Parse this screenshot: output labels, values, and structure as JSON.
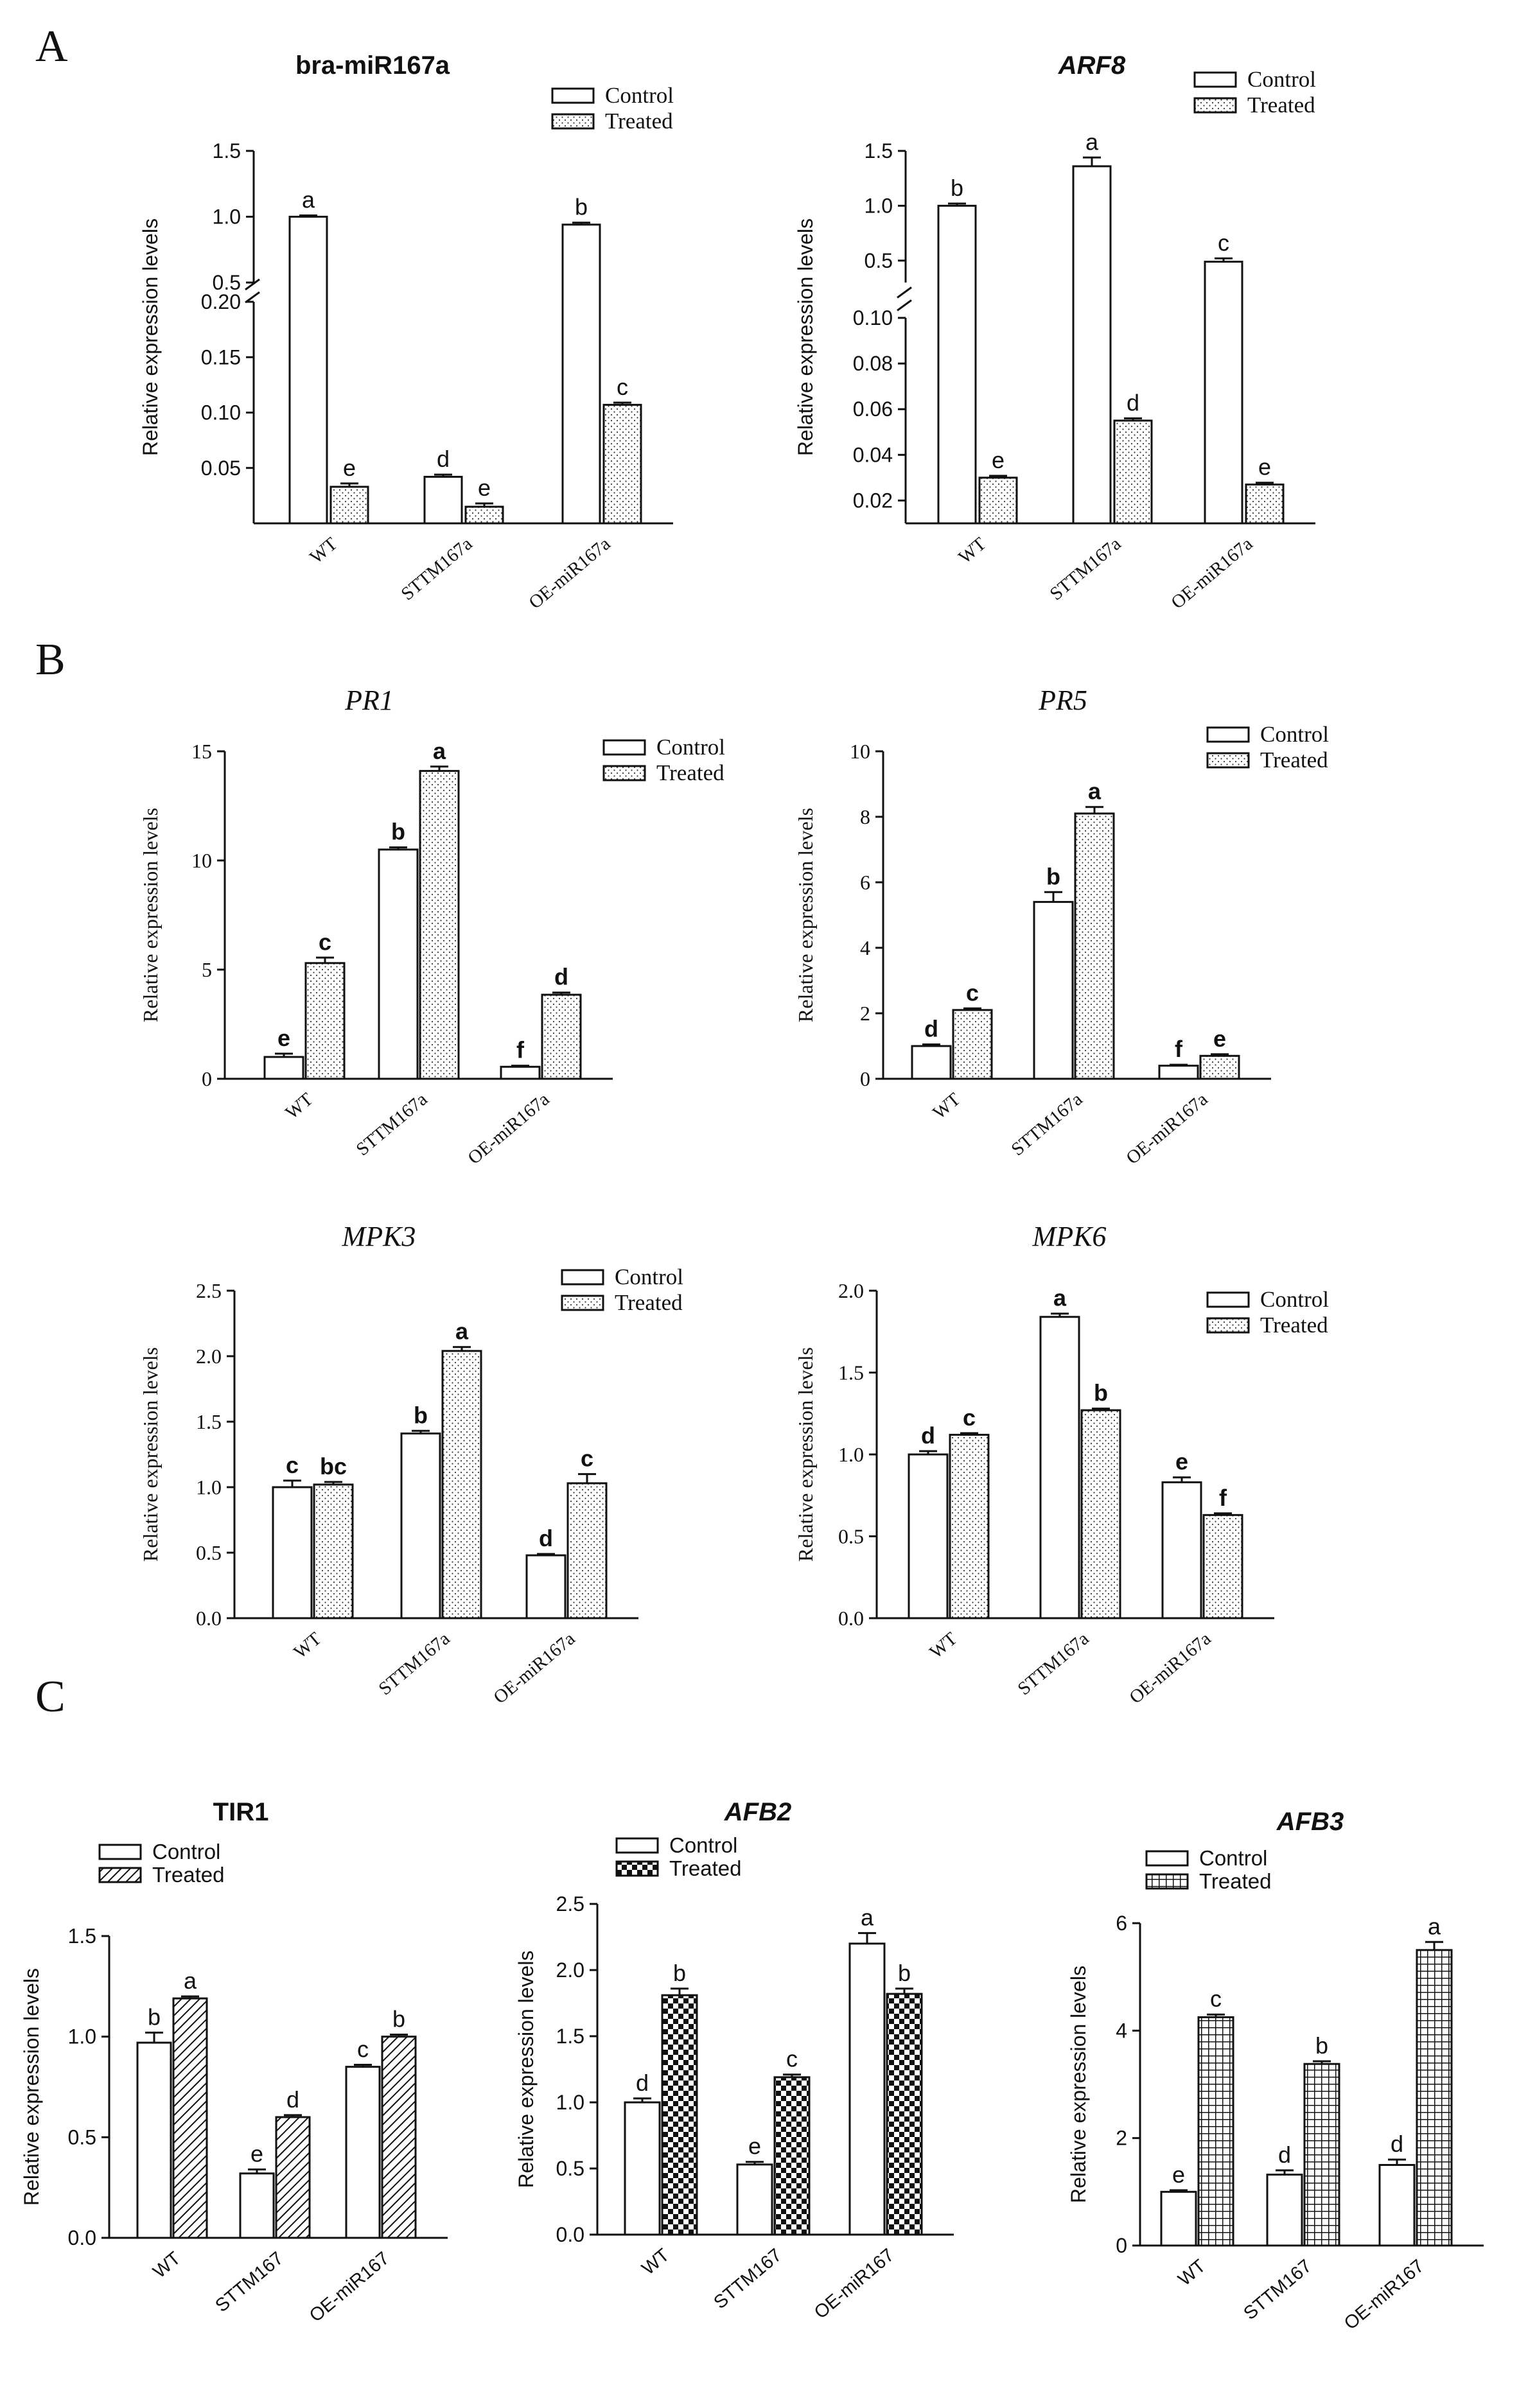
{
  "panel_labels": [
    "A",
    "B",
    "C"
  ],
  "chart_data": [
    {
      "id": "bra-mir167a",
      "panel": "A",
      "type": "bar",
      "title": "bra-miR167a",
      "xlabel": "",
      "ylabel": "Relative expression levels",
      "categories": [
        "WT",
        "STTM167a",
        "OE-miR167a"
      ],
      "series": [
        {
          "name": "Control",
          "pattern": "open",
          "values": [
            1.0,
            0.042,
            0.94
          ],
          "errors": [
            0.01,
            0.002,
            0.015
          ],
          "letters": [
            "a",
            "d",
            "b"
          ]
        },
        {
          "name": "Treated",
          "pattern": "dots",
          "values": [
            0.033,
            0.015,
            0.107
          ],
          "errors": [
            0.003,
            0.003,
            0.002
          ],
          "letters": [
            "e",
            "e",
            "c"
          ]
        }
      ],
      "axis_break": {
        "lower_range": [
          0.0,
          0.2
        ],
        "upper_range": [
          0.5,
          1.5
        ]
      },
      "yticks": [
        "0.05",
        "0.10",
        "0.15",
        "0.20",
        "0.5",
        "1.0",
        "1.5"
      ],
      "legend": {
        "position": "top-right",
        "labels": [
          "Control",
          "Treated"
        ]
      }
    },
    {
      "id": "arf8",
      "panel": "A",
      "type": "bar",
      "title": "ARF8",
      "xlabel": "",
      "ylabel": "Relative expression levels",
      "categories": [
        "WT",
        "STTM167a",
        "OE-miR167a"
      ],
      "series": [
        {
          "name": "Control",
          "pattern": "open",
          "values": [
            1.0,
            1.36,
            0.49
          ],
          "errors": [
            0.02,
            0.08,
            0.03
          ],
          "letters": [
            "b",
            "a",
            "c"
          ]
        },
        {
          "name": "Treated",
          "pattern": "dots",
          "values": [
            0.03,
            0.055,
            0.027
          ],
          "errors": [
            0.0008,
            0.001,
            0.0008
          ],
          "letters": [
            "e",
            "d",
            "e"
          ]
        }
      ],
      "axis_break": {
        "lower_range": [
          0.01,
          0.1
        ],
        "upper_range": [
          0.3,
          1.5
        ]
      },
      "yticks": [
        "0.02",
        "0.04",
        "0.06",
        "0.08",
        "0.10",
        "0.5",
        "1.0",
        "1.5"
      ],
      "legend": {
        "position": "top-right",
        "labels": [
          "Control",
          "Treated"
        ]
      }
    },
    {
      "id": "pr1",
      "panel": "B",
      "type": "bar",
      "title": "PR1",
      "xlabel": "",
      "ylabel": "Relative expression levels",
      "categories": [
        "WT",
        "STTM167a",
        "OE-miR167a"
      ],
      "series": [
        {
          "name": "Control",
          "pattern": "open",
          "values": [
            1.0,
            10.5,
            0.55
          ],
          "errors": [
            0.15,
            0.1,
            0.05
          ],
          "letters": [
            "e",
            "b",
            "f"
          ]
        },
        {
          "name": "Treated",
          "pattern": "dots",
          "values": [
            5.3,
            14.1,
            3.85
          ],
          "errors": [
            0.25,
            0.2,
            0.1
          ],
          "letters": [
            "c",
            "a",
            "d"
          ]
        }
      ],
      "ylim": [
        0,
        15
      ],
      "yticks": [
        "0",
        "5",
        "10",
        "15"
      ],
      "legend": {
        "position": "top-right",
        "labels": [
          "Control",
          "Treated"
        ]
      }
    },
    {
      "id": "pr5",
      "panel": "B",
      "type": "bar",
      "title": "PR5",
      "xlabel": "",
      "ylabel": "Relative expression levels",
      "categories": [
        "WT",
        "STTM167a",
        "OE-miR167a"
      ],
      "series": [
        {
          "name": "Control",
          "pattern": "open",
          "values": [
            1.0,
            5.4,
            0.4
          ],
          "errors": [
            0.05,
            0.3,
            0.03
          ],
          "letters": [
            "d",
            "b",
            "f"
          ]
        },
        {
          "name": "Treated",
          "pattern": "dots",
          "values": [
            2.1,
            8.1,
            0.7
          ],
          "errors": [
            0.05,
            0.2,
            0.05
          ],
          "letters": [
            "c",
            "a",
            "e"
          ]
        }
      ],
      "ylim": [
        0,
        10
      ],
      "yticks": [
        "0",
        "2",
        "4",
        "6",
        "8",
        "10"
      ],
      "legend": {
        "position": "top-right",
        "labels": [
          "Control",
          "Treated"
        ]
      }
    },
    {
      "id": "mpk3",
      "panel": "B",
      "type": "bar",
      "title": "MPK3",
      "xlabel": "",
      "ylabel": "Relative expression levels",
      "categories": [
        "WT",
        "STTM167a",
        "OE-miR167a"
      ],
      "series": [
        {
          "name": "Control",
          "pattern": "open",
          "values": [
            1.0,
            1.41,
            0.48
          ],
          "errors": [
            0.05,
            0.02,
            0.01
          ],
          "letters": [
            "c",
            "b",
            "d"
          ]
        },
        {
          "name": "Treated",
          "pattern": "dots",
          "values": [
            1.02,
            2.04,
            1.03
          ],
          "errors": [
            0.02,
            0.03,
            0.07
          ],
          "letters": [
            "bc",
            "a",
            "c"
          ]
        }
      ],
      "ylim": [
        0,
        2.5
      ],
      "yticks": [
        "0.0",
        "0.5",
        "1.0",
        "1.5",
        "2.0",
        "2.5"
      ],
      "legend": {
        "position": "top-right",
        "labels": [
          "Control",
          "Treated"
        ]
      }
    },
    {
      "id": "mpk6",
      "panel": "B",
      "type": "bar",
      "title": "MPK6",
      "xlabel": "",
      "ylabel": "Relative expression levels",
      "categories": [
        "WT",
        "STTM167a",
        "OE-miR167a"
      ],
      "series": [
        {
          "name": "Control",
          "pattern": "open",
          "values": [
            1.0,
            1.84,
            0.83
          ],
          "errors": [
            0.02,
            0.02,
            0.03
          ],
          "letters": [
            "d",
            "a",
            "e"
          ]
        },
        {
          "name": "Treated",
          "pattern": "dots",
          "values": [
            1.12,
            1.27,
            0.63
          ],
          "errors": [
            0.01,
            0.01,
            0.01
          ],
          "letters": [
            "c",
            "b",
            "f"
          ]
        }
      ],
      "ylim": [
        0,
        2.0
      ],
      "yticks": [
        "0.0",
        "0.5",
        "1.0",
        "1.5",
        "2.0"
      ],
      "legend": {
        "position": "top-right",
        "labels": [
          "Control",
          "Treated"
        ]
      }
    },
    {
      "id": "tir1",
      "panel": "C",
      "type": "bar",
      "title": "TIR1",
      "xlabel": "",
      "ylabel": "Relative expression levels",
      "categories": [
        "WT",
        "STTM167",
        "OE-miR167"
      ],
      "series": [
        {
          "name": "Control",
          "pattern": "open",
          "values": [
            0.97,
            0.32,
            0.85
          ],
          "errors": [
            0.05,
            0.02,
            0.01
          ],
          "letters": [
            "b",
            "e",
            "c"
          ]
        },
        {
          "name": "Treated",
          "pattern": "hatch",
          "values": [
            1.19,
            0.6,
            1.0
          ],
          "errors": [
            0.01,
            0.01,
            0.01
          ],
          "letters": [
            "a",
            "d",
            "b"
          ]
        }
      ],
      "ylim": [
        0,
        1.5
      ],
      "yticks": [
        "0.0",
        "0.5",
        "1.0",
        "1.5"
      ],
      "legend": {
        "position": "top-left",
        "labels": [
          "Control",
          "Treated"
        ]
      }
    },
    {
      "id": "afb2",
      "panel": "C",
      "type": "bar",
      "title": "AFB2",
      "xlabel": "",
      "ylabel": "Relative expression levels",
      "categories": [
        "WT",
        "STTM167",
        "OE-miR167"
      ],
      "series": [
        {
          "name": "Control",
          "pattern": "open",
          "values": [
            1.0,
            0.53,
            2.2
          ],
          "errors": [
            0.03,
            0.02,
            0.08
          ],
          "letters": [
            "d",
            "e",
            "a"
          ]
        },
        {
          "name": "Treated",
          "pattern": "checker",
          "values": [
            1.81,
            1.19,
            1.82
          ],
          "errors": [
            0.05,
            0.02,
            0.04
          ],
          "letters": [
            "b",
            "c",
            "b"
          ]
        }
      ],
      "ylim": [
        0,
        2.5
      ],
      "yticks": [
        "0.0",
        "0.5",
        "1.0",
        "1.5",
        "2.0",
        "2.5"
      ],
      "legend": {
        "position": "top-left",
        "labels": [
          "Control",
          "Treated"
        ]
      }
    },
    {
      "id": "afb3",
      "panel": "C",
      "type": "bar",
      "title": "AFB3",
      "xlabel": "",
      "ylabel": "Relative expression levels",
      "categories": [
        "WT",
        "STTM167",
        "OE-miR167"
      ],
      "series": [
        {
          "name": "Control",
          "pattern": "open",
          "values": [
            1.0,
            1.32,
            1.5
          ],
          "errors": [
            0.03,
            0.08,
            0.1
          ],
          "letters": [
            "e",
            "d",
            "d"
          ]
        },
        {
          "name": "Treated",
          "pattern": "grid",
          "values": [
            4.25,
            3.38,
            5.5
          ],
          "errors": [
            0.05,
            0.05,
            0.15
          ],
          "letters": [
            "c",
            "b",
            "a"
          ]
        }
      ],
      "ylim": [
        0,
        6
      ],
      "yticks": [
        "0",
        "2",
        "4",
        "6"
      ],
      "legend": {
        "position": "top-left",
        "labels": [
          "Control",
          "Treated"
        ]
      }
    }
  ]
}
